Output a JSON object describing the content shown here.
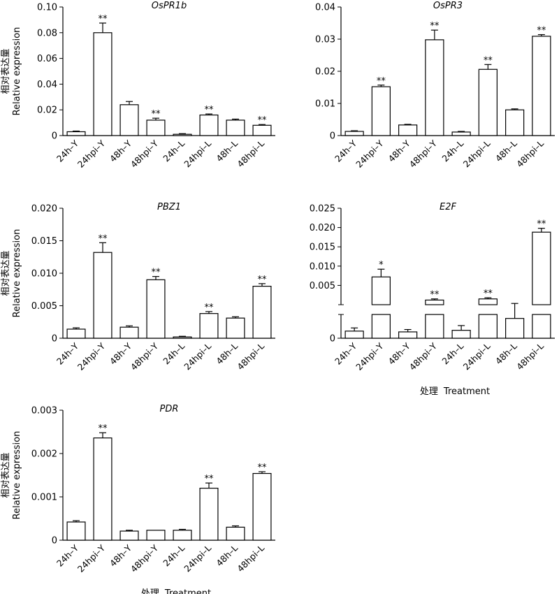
{
  "chart_data": [
    {
      "id": "ospr1b",
      "type": "bar",
      "title": "OsPR1b",
      "ylabel_cn": "相对表达量",
      "ylabel": "Relative expression",
      "xlabel": "",
      "ylim": [
        0,
        0.1
      ],
      "yticks": [
        "0",
        "0.02",
        "0.04",
        "0.06",
        "0.08",
        "0.10"
      ],
      "categories": [
        "24h–Y",
        "24hpi–Y",
        "48h–Y",
        "48hpi–Y",
        "24h–L",
        "24hpi–L",
        "48h–L",
        "48hpi–L"
      ],
      "values": [
        0.003,
        0.08,
        0.024,
        0.012,
        0.001,
        0.016,
        0.012,
        0.008
      ],
      "errors": [
        0.0005,
        0.0075,
        0.0025,
        0.0015,
        0.0005,
        0.0008,
        0.0008,
        0.0006
      ],
      "significance": [
        "",
        "**",
        "",
        "**",
        "",
        "**",
        "",
        "**"
      ]
    },
    {
      "id": "ospr3",
      "type": "bar",
      "title": "OsPR3",
      "ylabel": "",
      "xlabel": "",
      "ylim": [
        0,
        0.04
      ],
      "yticks": [
        "0",
        "0.01",
        "0.02",
        "0.03",
        "0.04"
      ],
      "categories": [
        "24h–Y",
        "24hpi–Y",
        "48h–Y",
        "48hpi–Y",
        "24h–L",
        "24hpi–L",
        "48h–L",
        "48hpi–L"
      ],
      "values": [
        0.0013,
        0.0152,
        0.0033,
        0.0298,
        0.0011,
        0.0206,
        0.008,
        0.0309
      ],
      "errors": [
        0.0002,
        0.0005,
        0.0002,
        0.003,
        0.0002,
        0.0015,
        0.0003,
        0.0005
      ],
      "significance": [
        "",
        "**",
        "",
        "**",
        "",
        "**",
        "",
        "**"
      ]
    },
    {
      "id": "pbz1",
      "type": "bar",
      "title": "PBZ1",
      "ylabel_cn": "相对表达量",
      "ylabel": "Relative expression",
      "xlabel": "",
      "ylim": [
        0,
        0.02
      ],
      "yticks": [
        "0",
        "0.005",
        "0.010",
        "0.015",
        "0.020"
      ],
      "categories": [
        "24h–Y",
        "24hpi–Y",
        "48h–Y",
        "48hpi–Y",
        "24h–L",
        "24hpi–L",
        "48h–L",
        "48hpi–L"
      ],
      "values": [
        0.0014,
        0.0132,
        0.0017,
        0.009,
        0.0002,
        0.0038,
        0.0031,
        0.008
      ],
      "errors": [
        0.0002,
        0.0015,
        0.0002,
        0.0005,
        0.0001,
        0.0003,
        0.0002,
        0.0004
      ],
      "significance": [
        "",
        "**",
        "",
        "**",
        "",
        "**",
        "",
        "**"
      ]
    },
    {
      "id": "e2f",
      "type": "bar",
      "title": "E2F",
      "ylabel": "",
      "xlabel_cn": "处理",
      "xlabel": "Treatment",
      "axis_break": true,
      "ylim_upper": [
        0,
        0.025
      ],
      "yticks_upper": [
        "0.005",
        "0.010",
        "0.015",
        "0.020",
        "0.025"
      ],
      "ylim_lower": [
        0,
        0.0003
      ],
      "yticks_lower": [
        "0"
      ],
      "categories": [
        "24h–Y",
        "24hpi–Y",
        "48h–Y",
        "48hpi–Y",
        "24h–L",
        "24hpi–L",
        "48h–L",
        "48hpi–L"
      ],
      "values": [
        9e-05,
        0.0072,
        8e-05,
        0.0012,
        0.0001,
        0.0015,
        0.00025,
        0.0188
      ],
      "errors": [
        4e-05,
        0.002,
        3e-05,
        0.0003,
        6e-05,
        0.0003,
        7e-05,
        0.001
      ],
      "significance": [
        "",
        "*",
        "",
        "**",
        "",
        "**",
        "",
        "**"
      ]
    },
    {
      "id": "pdr",
      "type": "bar",
      "title": "PDR",
      "ylabel_cn": "相对表达量",
      "ylabel": "Relative expression",
      "xlabel_cn": "处理",
      "xlabel": "Treatment",
      "ylim": [
        0,
        0.003
      ],
      "yticks": [
        "0",
        "0.001",
        "0.002",
        "0.003"
      ],
      "categories": [
        "24h–Y",
        "24hpi–Y",
        "48h–Y",
        "48hpi–Y",
        "24h–L",
        "24hpi–L",
        "48h–L",
        "48hpi–L"
      ],
      "values": [
        0.00042,
        0.00236,
        0.00021,
        0.00023,
        0.00023,
        0.0012,
        0.0003,
        0.00154
      ],
      "errors": [
        3e-05,
        0.00012,
        2e-05,
        0.0,
        2e-05,
        0.00012,
        3e-05,
        4e-05
      ],
      "significance": [
        "",
        "**",
        "",
        "",
        "",
        "**",
        "",
        "**"
      ]
    }
  ]
}
